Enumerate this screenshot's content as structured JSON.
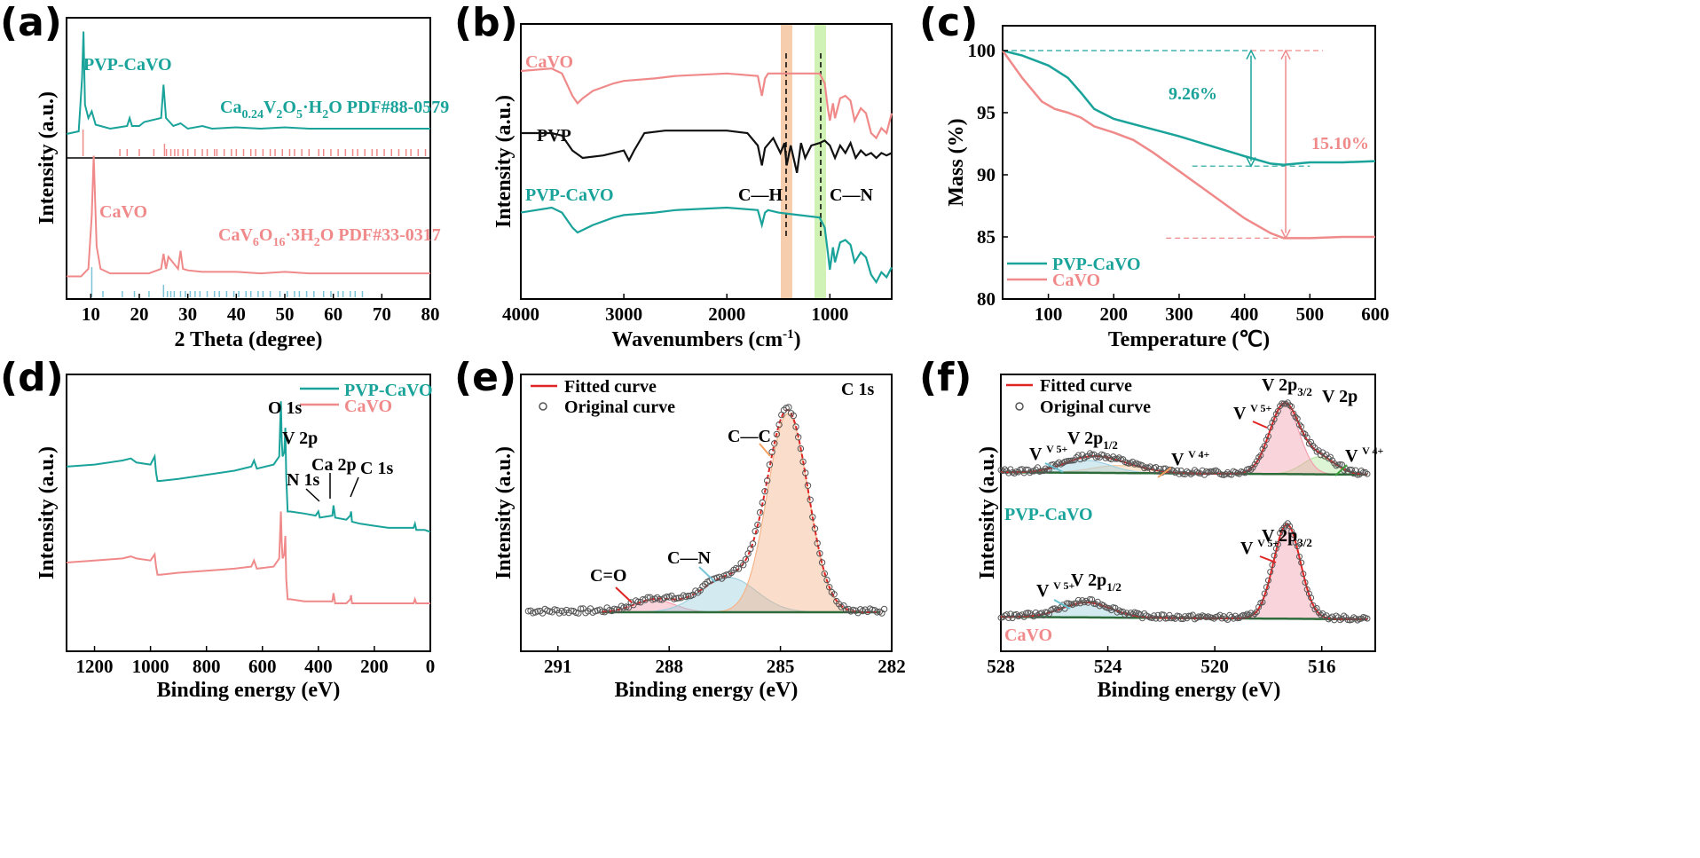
{
  "colors": {
    "teal": "#1aa39a",
    "pink": "#f08a8a",
    "black": "#111111",
    "green": "#2e6b3a",
    "orange_band": "#f5c59f",
    "green_band": "#c9f0a8"
  },
  "chart_data": [
    {
      "id": "a",
      "panel_label": "(a)",
      "type": "line",
      "xlabel": "2 Theta (degree)",
      "ylabel": "Intensity (a.u.)",
      "xlim": [
        5,
        80
      ],
      "xticks": [
        10,
        20,
        30,
        40,
        50,
        60,
        70,
        80
      ],
      "series": [
        {
          "name": "PVP-CaVO",
          "color": "#1aa39a",
          "x": [
            5,
            7.5,
            8.2,
            8.5,
            8.8,
            9.5,
            10.2,
            11,
            14,
            17.5,
            18,
            18.5,
            20,
            21,
            24.5,
            25,
            25.5,
            27,
            28.5,
            30,
            33,
            35,
            40,
            45,
            50,
            55,
            60,
            70,
            80
          ],
          "y": [
            0.18,
            0.2,
            0.6,
            0.95,
            0.4,
            0.3,
            0.35,
            0.25,
            0.22,
            0.24,
            0.3,
            0.24,
            0.24,
            0.27,
            0.3,
            0.55,
            0.3,
            0.24,
            0.26,
            0.22,
            0.24,
            0.22,
            0.23,
            0.22,
            0.23,
            0.22,
            0.22,
            0.22,
            0.22
          ]
        },
        {
          "name": "CaVO",
          "color": "#f08a8a",
          "x": [
            5,
            8,
            9.5,
            10.2,
            10.6,
            11.2,
            12,
            14,
            18,
            22,
            24.5,
            25,
            25.5,
            26,
            28,
            28.5,
            29,
            30,
            33,
            40,
            45,
            50,
            55,
            60,
            70,
            80
          ],
          "y": [
            0.15,
            0.15,
            0.2,
            0.55,
            0.95,
            0.35,
            0.2,
            0.17,
            0.17,
            0.17,
            0.2,
            0.3,
            0.2,
            0.28,
            0.2,
            0.32,
            0.2,
            0.19,
            0.18,
            0.18,
            0.17,
            0.18,
            0.17,
            0.17,
            0.17,
            0.17
          ]
        }
      ],
      "labels": {
        "top_sample": "PVP-CaVO",
        "top_ref": "Ca0.24V2O5·H2O PDF#88-0579",
        "bottom_sample": "CaVO",
        "bottom_ref": "CaV6O16·3H2O PDF#33-0317"
      },
      "ref_top": [
        8.4,
        16,
        17.5,
        20,
        23,
        25.2,
        25.6,
        26.5,
        27.3,
        28,
        29,
        30,
        31.5,
        33,
        34,
        35.5,
        36,
        37.5,
        39,
        40,
        41.5,
        43,
        44,
        45.5,
        47,
        48,
        49.5,
        51,
        52,
        53.5,
        55,
        57,
        58,
        59.5,
        61,
        62.5,
        64,
        65,
        66.5,
        68,
        69,
        70.5,
        72,
        73.5,
        75,
        76,
        77.5,
        79
      ],
      "ref_bottom": [
        10.2,
        12.5,
        16.5,
        19,
        22,
        25,
        25.8,
        26.5,
        27.2,
        28.5,
        29.5,
        30.5,
        31.5,
        32.5,
        34,
        35.5,
        36.5,
        38,
        39.5,
        40.5,
        42,
        43,
        44.5,
        45.5,
        47,
        49,
        50.5,
        52,
        53,
        54.5,
        56,
        58,
        59.5,
        61,
        62,
        63.5,
        64.5,
        66
      ]
    },
    {
      "id": "b",
      "panel_label": "(b)",
      "type": "line",
      "xlabel": "Wavenumbers (cm-1)",
      "xlabel_main": "Wavenumbers (cm",
      "xlabel_sup": "-1",
      "xlabel_end": ")",
      "ylabel": "Intensity (a.u.)",
      "xlim": [
        4000,
        400
      ],
      "xticks": [
        4000,
        3000,
        2000,
        1000
      ],
      "series": [
        {
          "name": "CaVO",
          "color": "#f08a8a",
          "x": [
            4000,
            3700,
            3600,
            3500,
            3450,
            3400,
            3300,
            3100,
            3000,
            2700,
            2500,
            2000,
            1700,
            1660,
            1630,
            1600,
            1500,
            1300,
            1100,
            1050,
            1020,
            1000,
            970,
            950,
            900,
            850,
            800,
            760,
            700,
            650,
            600,
            550,
            500,
            450,
            400
          ],
          "y": [
            0.85,
            0.86,
            0.84,
            0.75,
            0.72,
            0.74,
            0.77,
            0.8,
            0.81,
            0.82,
            0.83,
            0.84,
            0.83,
            0.75,
            0.82,
            0.84,
            0.84,
            0.84,
            0.84,
            0.8,
            0.7,
            0.65,
            0.72,
            0.66,
            0.74,
            0.75,
            0.73,
            0.65,
            0.7,
            0.68,
            0.6,
            0.58,
            0.62,
            0.6,
            0.68
          ]
        },
        {
          "name": "PVP",
          "color": "#111111",
          "x": [
            4000,
            3700,
            3600,
            3500,
            3400,
            3200,
            3000,
            2950,
            2900,
            2800,
            2600,
            2000,
            1800,
            1700,
            1660,
            1630,
            1550,
            1480,
            1440,
            1420,
            1380,
            1320,
            1280,
            1240,
            1180,
            1100,
            1050,
            1000,
            950,
            900,
            850,
            800,
            750,
            700,
            650,
            600,
            550,
            500,
            450,
            400
          ],
          "y": [
            0.6,
            0.6,
            0.59,
            0.53,
            0.5,
            0.51,
            0.53,
            0.49,
            0.53,
            0.6,
            0.61,
            0.61,
            0.6,
            0.55,
            0.47,
            0.54,
            0.58,
            0.52,
            0.56,
            0.47,
            0.55,
            0.44,
            0.56,
            0.5,
            0.55,
            0.56,
            0.57,
            0.55,
            0.5,
            0.55,
            0.52,
            0.56,
            0.5,
            0.53,
            0.51,
            0.52,
            0.5,
            0.52,
            0.51,
            0.52
          ]
        },
        {
          "name": "PVP-CaVO",
          "color": "#1aa39a",
          "x": [
            4000,
            3700,
            3600,
            3500,
            3450,
            3400,
            3300,
            3100,
            3000,
            2700,
            2500,
            2000,
            1700,
            1660,
            1630,
            1600,
            1500,
            1300,
            1100,
            1050,
            1020,
            1000,
            970,
            950,
            900,
            850,
            800,
            760,
            700,
            650,
            600,
            550,
            500,
            450,
            400
          ],
          "y": [
            0.28,
            0.3,
            0.28,
            0.22,
            0.2,
            0.21,
            0.23,
            0.26,
            0.27,
            0.28,
            0.29,
            0.3,
            0.29,
            0.23,
            0.28,
            0.29,
            0.28,
            0.27,
            0.26,
            0.22,
            0.12,
            0.05,
            0.14,
            0.08,
            0.16,
            0.17,
            0.15,
            0.08,
            0.12,
            0.1,
            0.03,
            0.0,
            0.04,
            0.02,
            0.06
          ]
        }
      ],
      "bands": [
        {
          "center": 1400,
          "label": "C—H"
        },
        {
          "center": 1080,
          "label": "C—N"
        }
      ]
    },
    {
      "id": "c",
      "panel_label": "(c)",
      "type": "line",
      "xlabel": "Temperature (℃)",
      "ylabel": "Mass (%)",
      "xlim": [
        30,
        600
      ],
      "ylim": [
        80,
        102
      ],
      "xticks": [
        100,
        200,
        300,
        400,
        500,
        600
      ],
      "yticks": [
        80,
        85,
        90,
        95,
        100
      ],
      "series": [
        {
          "name": "PVP-CaVO",
          "color": "#1aa39a",
          "x": [
            30,
            60,
            100,
            130,
            150,
            170,
            200,
            250,
            300,
            350,
            400,
            440,
            460,
            480,
            500,
            550,
            600
          ],
          "y": [
            100,
            99.6,
            98.8,
            97.8,
            96.6,
            95.3,
            94.5,
            93.8,
            93.1,
            92.3,
            91.5,
            90.9,
            90.8,
            90.9,
            91,
            91,
            91.1
          ]
        },
        {
          "name": "CaVO",
          "color": "#f08a8a",
          "x": [
            30,
            60,
            90,
            110,
            130,
            150,
            170,
            200,
            230,
            260,
            300,
            350,
            400,
            440,
            460,
            480,
            500,
            550,
            600
          ],
          "y": [
            100,
            97.8,
            95.9,
            95.3,
            95,
            94.6,
            93.9,
            93.4,
            92.8,
            91.8,
            90.3,
            88.4,
            86.5,
            85.3,
            84.9,
            84.9,
            84.9,
            85,
            85
          ]
        }
      ],
      "annotations": [
        "9.26%",
        "15.10%"
      ],
      "legend": "bottom-left"
    },
    {
      "id": "d",
      "panel_label": "(d)",
      "type": "line",
      "xlabel": "Binding energy (eV)",
      "ylabel": "Intensity (a.u.)",
      "xlim": [
        1300,
        0
      ],
      "xticks": [
        1200,
        1000,
        800,
        600,
        400,
        200,
        0
      ],
      "series": [
        {
          "name": "PVP-CaVO",
          "color": "#1aa39a",
          "x": [
            1300,
            1200,
            1100,
            1070,
            1050,
            1000,
            985,
            980,
            975,
            965,
            900,
            800,
            700,
            640,
            630,
            620,
            560,
            540,
            534,
            531,
            528,
            522,
            518,
            515,
            510,
            500,
            450,
            410,
            400,
            395,
            350,
            346,
            340,
            300,
            286,
            283,
            280,
            250,
            200,
            150,
            100,
            60,
            55,
            50,
            20,
            0
          ],
          "y": [
            0.67,
            0.68,
            0.7,
            0.71,
            0.69,
            0.68,
            0.72,
            0.64,
            0.6,
            0.6,
            0.61,
            0.63,
            0.65,
            0.67,
            0.7,
            0.66,
            0.68,
            0.72,
            0.99,
            0.8,
            0.72,
            0.74,
            0.86,
            0.62,
            0.45,
            0.45,
            0.44,
            0.43,
            0.45,
            0.42,
            0.43,
            0.48,
            0.42,
            0.41,
            0.43,
            0.45,
            0.4,
            0.39,
            0.38,
            0.37,
            0.37,
            0.37,
            0.39,
            0.36,
            0.36,
            0.35
          ]
        },
        {
          "name": "CaVO",
          "color": "#f08a8a",
          "x": [
            1300,
            1200,
            1100,
            1070,
            1050,
            1000,
            985,
            980,
            975,
            965,
            900,
            800,
            700,
            640,
            630,
            620,
            560,
            540,
            534,
            531,
            528,
            522,
            518,
            515,
            510,
            500,
            450,
            400,
            350,
            346,
            340,
            300,
            286,
            283,
            280,
            250,
            200,
            150,
            100,
            60,
            55,
            50,
            20,
            0
          ],
          "y": [
            0.2,
            0.21,
            0.22,
            0.23,
            0.22,
            0.21,
            0.24,
            0.18,
            0.14,
            0.14,
            0.15,
            0.16,
            0.17,
            0.18,
            0.21,
            0.17,
            0.18,
            0.22,
            0.45,
            0.3,
            0.22,
            0.24,
            0.33,
            0.12,
            0.02,
            0.02,
            0.01,
            0.01,
            0.01,
            0.05,
            0.0,
            0.0,
            0.02,
            0.04,
            0.0,
            0.0,
            0.0,
            0.0,
            0.0,
            0.0,
            0.02,
            0.0,
            0.0,
            0.0
          ]
        }
      ],
      "peaks": [
        "O 1s",
        "V 2p",
        "N 1s",
        "Ca 2p",
        "C 1s"
      ],
      "legend": "top-right"
    },
    {
      "id": "e",
      "panel_label": "(e)",
      "type": "line",
      "xlabel": "Binding energy (eV)",
      "ylabel": "Intensity (a.u.)",
      "xlim": [
        292,
        282
      ],
      "xticks": [
        291,
        288,
        285,
        282
      ],
      "title": "C 1s",
      "legend_items": [
        "Fitted curve",
        "Original curve"
      ],
      "components": [
        {
          "label": "C—C",
          "center": 284.8,
          "sigma": 0.55,
          "height": 0.8,
          "color": "#f5b48a"
        },
        {
          "label": "C—N",
          "center": 286.4,
          "sigma": 0.75,
          "height": 0.14,
          "color": "#9fd0e0"
        },
        {
          "label": "C=O",
          "center": 288.4,
          "sigma": 0.55,
          "height": 0.05,
          "color": "#f5a0b0"
        }
      ],
      "baseline": 0.06
    },
    {
      "id": "f",
      "panel_label": "(f)",
      "type": "line",
      "xlabel": "Binding energy (eV)",
      "ylabel": "Intensity (a.u.)",
      "xlim": [
        528,
        514
      ],
      "xticks": [
        528,
        524,
        520,
        516
      ],
      "title": "V 2p",
      "legend_items": [
        "Fitted curve",
        "Original curve"
      ],
      "samples": [
        {
          "name": "PVP-CaVO",
          "offset": 0.5,
          "components": [
            {
              "label": "V 5+",
              "center": 524.8,
              "sigma": 0.9,
              "height": 0.05,
              "color": "#9fd0e0"
            },
            {
              "label": "V 4+",
              "center": 523.6,
              "sigma": 1.0,
              "height": 0.03,
              "color": "#f5c9a0"
            },
            {
              "label": "V 5+",
              "center": 517.4,
              "sigma": 0.55,
              "height": 0.28,
              "color": "#f5a0b0"
            },
            {
              "label": "V 4+",
              "center": 516.1,
              "sigma": 0.6,
              "height": 0.07,
              "color": "#b4e8a0"
            }
          ]
        },
        {
          "name": "CaVO",
          "offset": 0.0,
          "components": [
            {
              "label": "V 5+",
              "center": 524.8,
              "sigma": 0.9,
              "height": 0.06,
              "color": "#9fd0e0"
            },
            {
              "label": "V 5+",
              "center": 517.3,
              "sigma": 0.5,
              "height": 0.38,
              "color": "#f5a0b0"
            }
          ]
        }
      ],
      "texts": {
        "v2p12": "V 2p1/2",
        "v2p32": "V 2p3/2"
      }
    }
  ]
}
